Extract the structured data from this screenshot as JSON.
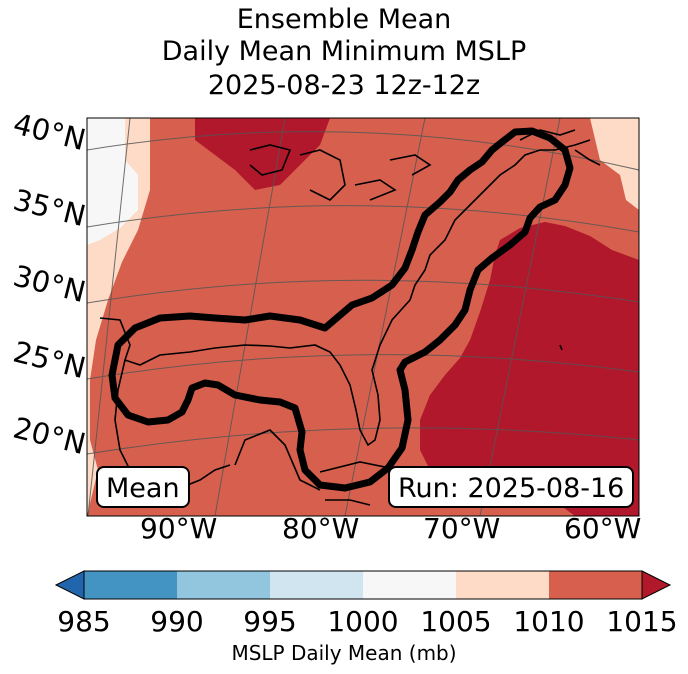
{
  "title": {
    "line1": "Ensemble Mean",
    "line2": "Daily Mean Minimum MSLP",
    "line3": "2025-08-23 12z-12z"
  },
  "map": {
    "lat_labels": [
      "40°N",
      "35°N",
      "30°N",
      "25°N",
      "20°N"
    ],
    "lon_labels": [
      "90°W",
      "80°W",
      "70°W",
      "60°W"
    ],
    "badge_left": "Mean",
    "badge_right": "Run: 2025-08-16",
    "fill_colors": {
      "1000-1005": "#f7f7f7",
      "1005-1010": "#fddbc7",
      "1010-1015": "#d6604d",
      "gt1015": "#b2182b"
    },
    "contour_color": "#000000"
  },
  "colorbar": {
    "ticks": [
      "985",
      "990",
      "995",
      "1000",
      "1005",
      "1010",
      "1015"
    ],
    "label": "MSLP Daily Mean (mb)",
    "under_color": "#2166ac",
    "over_color": "#b2182b",
    "colors": [
      "#4393c3",
      "#92c5de",
      "#d1e5f0",
      "#f7f7f7",
      "#fddbc7",
      "#d6604d"
    ]
  }
}
